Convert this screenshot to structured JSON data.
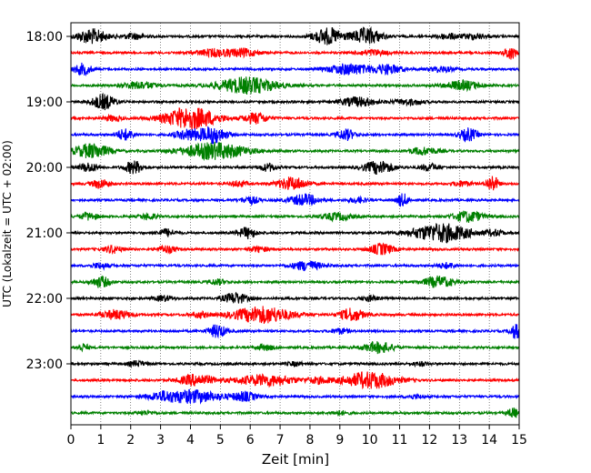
{
  "chart_data": {
    "type": "line",
    "title": "",
    "xlabel": "Zeit  [min]",
    "ylabel": "UTC (Lokalzeit = UTC + 02:00)",
    "xlim": [
      0,
      15
    ],
    "x_ticks": [
      "0",
      "1",
      "2",
      "3",
      "4",
      "5",
      "6",
      "7",
      "8",
      "9",
      "10",
      "11",
      "12",
      "13",
      "14",
      "15"
    ],
    "y_tick_labels": [
      "18:00",
      "19:00",
      "20:00",
      "21:00",
      "22:00",
      "23:00"
    ],
    "grid": "vertical dotted at each minute",
    "colors": [
      "#000000",
      "#ff0000",
      "#0000ff",
      "#008000"
    ],
    "traces": [
      {
        "start": "18:00",
        "color": "#000000",
        "bursts": [
          [
            0.7,
            0.5,
            8
          ],
          [
            8.6,
            0.5,
            9
          ],
          [
            9.9,
            0.5,
            9
          ],
          [
            12.6,
            0.4,
            3
          ],
          [
            13.5,
            0.4,
            3
          ],
          [
            2.1,
            0.4,
            3
          ]
        ]
      },
      {
        "start": "18:15",
        "color": "#ff0000",
        "bursts": [
          [
            4.8,
            0.6,
            4
          ],
          [
            5.8,
            0.5,
            4
          ],
          [
            10.1,
            0.5,
            3
          ],
          [
            14.7,
            0.2,
            7
          ]
        ]
      },
      {
        "start": "18:30",
        "color": "#0000ff",
        "bursts": [
          [
            0.4,
            0.3,
            6
          ],
          [
            9.3,
            0.7,
            6
          ],
          [
            10.6,
            0.5,
            5
          ],
          [
            12.4,
            0.4,
            3
          ]
        ]
      },
      {
        "start": "18:45",
        "color": "#008000",
        "bursts": [
          [
            2.3,
            0.6,
            4
          ],
          [
            5.9,
            1.0,
            9
          ],
          [
            13.1,
            0.6,
            5
          ]
        ]
      },
      {
        "start": "19:00",
        "color": "#000000",
        "bursts": [
          [
            1.1,
            0.4,
            8
          ],
          [
            9.6,
            0.6,
            5
          ],
          [
            11.3,
            0.5,
            3
          ]
        ]
      },
      {
        "start": "19:15",
        "color": "#ff0000",
        "bursts": [
          [
            4.0,
            0.9,
            12
          ],
          [
            6.2,
            0.4,
            6
          ],
          [
            1.4,
            0.3,
            3
          ]
        ]
      },
      {
        "start": "19:30",
        "color": "#0000ff",
        "bursts": [
          [
            1.8,
            0.3,
            6
          ],
          [
            4.0,
            0.5,
            6
          ],
          [
            4.8,
            0.4,
            9
          ],
          [
            9.2,
            0.3,
            6
          ],
          [
            13.3,
            0.3,
            7
          ]
        ]
      },
      {
        "start": "19:45",
        "color": "#008000",
        "bursts": [
          [
            0.7,
            0.6,
            8
          ],
          [
            4.8,
            1.1,
            9
          ],
          [
            11.8,
            0.5,
            4
          ]
        ]
      },
      {
        "start": "20:00",
        "color": "#000000",
        "bursts": [
          [
            0.6,
            0.3,
            5
          ],
          [
            2.1,
            0.3,
            7
          ],
          [
            6.6,
            0.3,
            4
          ],
          [
            10.3,
            0.5,
            7
          ],
          [
            12.0,
            0.3,
            4
          ]
        ]
      },
      {
        "start": "20:15",
        "color": "#ff0000",
        "bursts": [
          [
            1.0,
            0.3,
            5
          ],
          [
            7.4,
            0.5,
            7
          ],
          [
            5.6,
            0.3,
            3
          ],
          [
            13.1,
            0.3,
            3
          ],
          [
            14.1,
            0.2,
            9
          ]
        ]
      },
      {
        "start": "20:30",
        "color": "#0000ff",
        "bursts": [
          [
            6.0,
            0.3,
            4
          ],
          [
            7.8,
            0.5,
            6
          ],
          [
            11.1,
            0.2,
            7
          ],
          [
            9.6,
            0.3,
            3
          ]
        ]
      },
      {
        "start": "20:45",
        "color": "#008000",
        "bursts": [
          [
            0.6,
            0.3,
            4
          ],
          [
            8.9,
            0.5,
            4
          ],
          [
            13.3,
            0.5,
            6
          ],
          [
            2.6,
            0.3,
            3
          ]
        ]
      },
      {
        "start": "21:00",
        "color": "#000000",
        "bursts": [
          [
            3.2,
            0.3,
            4
          ],
          [
            5.9,
            0.3,
            6
          ],
          [
            12.4,
            1.0,
            10
          ],
          [
            14.2,
            0.3,
            3
          ]
        ]
      },
      {
        "start": "21:15",
        "color": "#ff0000",
        "bursts": [
          [
            1.4,
            0.3,
            4
          ],
          [
            3.2,
            0.3,
            4
          ],
          [
            10.4,
            0.4,
            6
          ],
          [
            6.3,
            0.3,
            3
          ]
        ]
      },
      {
        "start": "21:30",
        "color": "#0000ff",
        "bursts": [
          [
            7.9,
            0.5,
            5
          ],
          [
            1.0,
            0.3,
            3
          ],
          [
            12.6,
            0.3,
            3
          ]
        ]
      },
      {
        "start": "21:45",
        "color": "#008000",
        "bursts": [
          [
            1.0,
            0.3,
            6
          ],
          [
            12.3,
            0.5,
            6
          ],
          [
            4.9,
            0.3,
            3
          ]
        ]
      },
      {
        "start": "22:00",
        "color": "#000000",
        "bursts": [
          [
            5.5,
            0.4,
            6
          ],
          [
            3.1,
            0.3,
            3
          ],
          [
            10.0,
            0.3,
            3
          ]
        ]
      },
      {
        "start": "22:15",
        "color": "#ff0000",
        "bursts": [
          [
            1.5,
            0.5,
            5
          ],
          [
            6.4,
            1.0,
            9
          ],
          [
            9.4,
            0.4,
            7
          ],
          [
            4.3,
            0.3,
            3
          ]
        ]
      },
      {
        "start": "22:30",
        "color": "#0000ff",
        "bursts": [
          [
            4.9,
            0.3,
            7
          ],
          [
            14.9,
            0.2,
            8
          ],
          [
            9.0,
            0.3,
            3
          ]
        ]
      },
      {
        "start": "22:45",
        "color": "#008000",
        "bursts": [
          [
            0.4,
            0.2,
            4
          ],
          [
            10.3,
            0.5,
            6
          ],
          [
            6.5,
            0.3,
            3
          ]
        ]
      },
      {
        "start": "23:00",
        "color": "#000000",
        "bursts": [
          [
            2.2,
            0.3,
            3
          ],
          [
            7.5,
            0.3,
            2
          ],
          [
            11.7,
            0.3,
            2
          ]
        ]
      },
      {
        "start": "23:15",
        "color": "#ff0000",
        "bursts": [
          [
            4.2,
            0.6,
            6
          ],
          [
            6.5,
            1.0,
            6
          ],
          [
            10.0,
            0.9,
            9
          ],
          [
            8.3,
            0.4,
            3
          ]
        ]
      },
      {
        "start": "23:30",
        "color": "#0000ff",
        "bursts": [
          [
            4.0,
            1.0,
            7
          ],
          [
            5.8,
            0.4,
            5
          ],
          [
            3.0,
            0.4,
            3
          ],
          [
            11.5,
            0.3,
            2
          ]
        ]
      },
      {
        "start": "23:45",
        "color": "#008000",
        "bursts": [
          [
            14.8,
            0.2,
            5
          ],
          [
            2.5,
            0.3,
            2
          ],
          [
            9.0,
            0.3,
            2
          ]
        ]
      }
    ]
  }
}
